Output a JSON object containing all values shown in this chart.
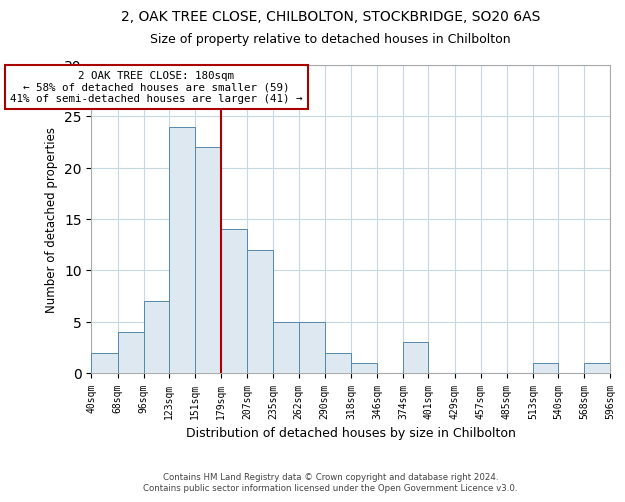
{
  "title": "2, OAK TREE CLOSE, CHILBOLTON, STOCKBRIDGE, SO20 6AS",
  "subtitle": "Size of property relative to detached houses in Chilbolton",
  "xlabel": "Distribution of detached houses by size in Chilbolton",
  "ylabel": "Number of detached properties",
  "bin_edges": [
    40,
    68,
    96,
    123,
    151,
    179,
    207,
    235,
    262,
    290,
    318,
    346,
    374,
    401,
    429,
    457,
    485,
    513,
    540,
    568,
    596
  ],
  "bar_heights": [
    2,
    4,
    7,
    24,
    22,
    14,
    12,
    5,
    5,
    2,
    1,
    0,
    3,
    0,
    0,
    0,
    0,
    1,
    0,
    1
  ],
  "bar_color": "#dde8f0",
  "bar_edge_color": "#5588aa",
  "property_line_x": 179,
  "property_line_color": "#aa0000",
  "annotation_line1": "2 OAK TREE CLOSE: 180sqm",
  "annotation_line2": "← 58% of detached houses are smaller (59)",
  "annotation_line3": "41% of semi-detached houses are larger (41) →",
  "annotation_box_color": "white",
  "annotation_box_edge": "#aa0000",
  "ylim": [
    0,
    30
  ],
  "yticks": [
    0,
    5,
    10,
    15,
    20,
    25,
    30
  ],
  "tick_labels": [
    "40sqm",
    "68sqm",
    "96sqm",
    "123sqm",
    "151sqm",
    "179sqm",
    "207sqm",
    "235sqm",
    "262sqm",
    "290sqm",
    "318sqm",
    "346sqm",
    "374sqm",
    "401sqm",
    "429sqm",
    "457sqm",
    "485sqm",
    "513sqm",
    "540sqm",
    "568sqm",
    "596sqm"
  ],
  "footer_text": "Contains HM Land Registry data © Crown copyright and database right 2024.\nContains public sector information licensed under the Open Government Licence v3.0.",
  "bg_color": "#ffffff",
  "grid_color": "#c8d8e0"
}
